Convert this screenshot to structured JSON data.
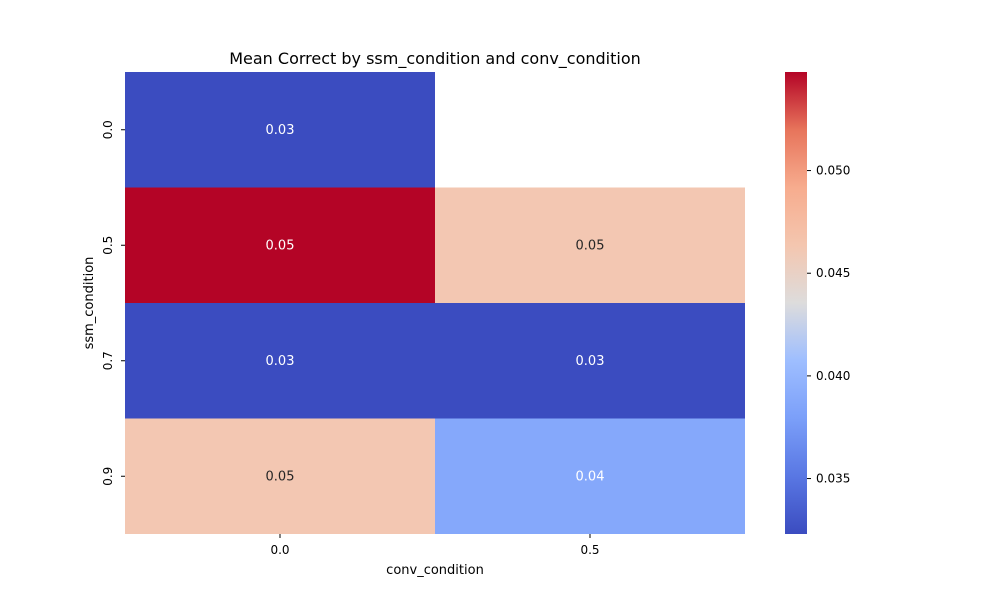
{
  "chart_data": {
    "type": "heatmap",
    "title": "Mean Correct by ssm_condition and conv_condition",
    "xlabel": "conv_condition",
    "ylabel": "ssm_condition",
    "x_categories": [
      "0.0",
      "0.5"
    ],
    "y_categories": [
      "0.0",
      "0.5",
      "0.7",
      "0.9"
    ],
    "cells": [
      {
        "x": "0.0",
        "y": "0.0",
        "value": 0.0323,
        "label": "0.03"
      },
      {
        "x": "0.0",
        "y": "0.5",
        "value": 0.0548,
        "label": "0.05"
      },
      {
        "x": "0.5",
        "y": "0.5",
        "value": 0.0462,
        "label": "0.05"
      },
      {
        "x": "0.0",
        "y": "0.7",
        "value": 0.0323,
        "label": "0.03"
      },
      {
        "x": "0.5",
        "y": "0.7",
        "value": 0.0323,
        "label": "0.03"
      },
      {
        "x": "0.0",
        "y": "0.9",
        "value": 0.0462,
        "label": "0.05"
      },
      {
        "x": "0.5",
        "y": "0.9",
        "value": 0.0387,
        "label": "0.04"
      }
    ],
    "colormap": "coolwarm",
    "colorbar": {
      "min": 0.0323,
      "max": 0.0548,
      "ticks": [
        0.035,
        0.04,
        0.045,
        0.05
      ],
      "tick_labels": [
        "0.035",
        "0.040",
        "0.045",
        "0.050"
      ]
    }
  }
}
